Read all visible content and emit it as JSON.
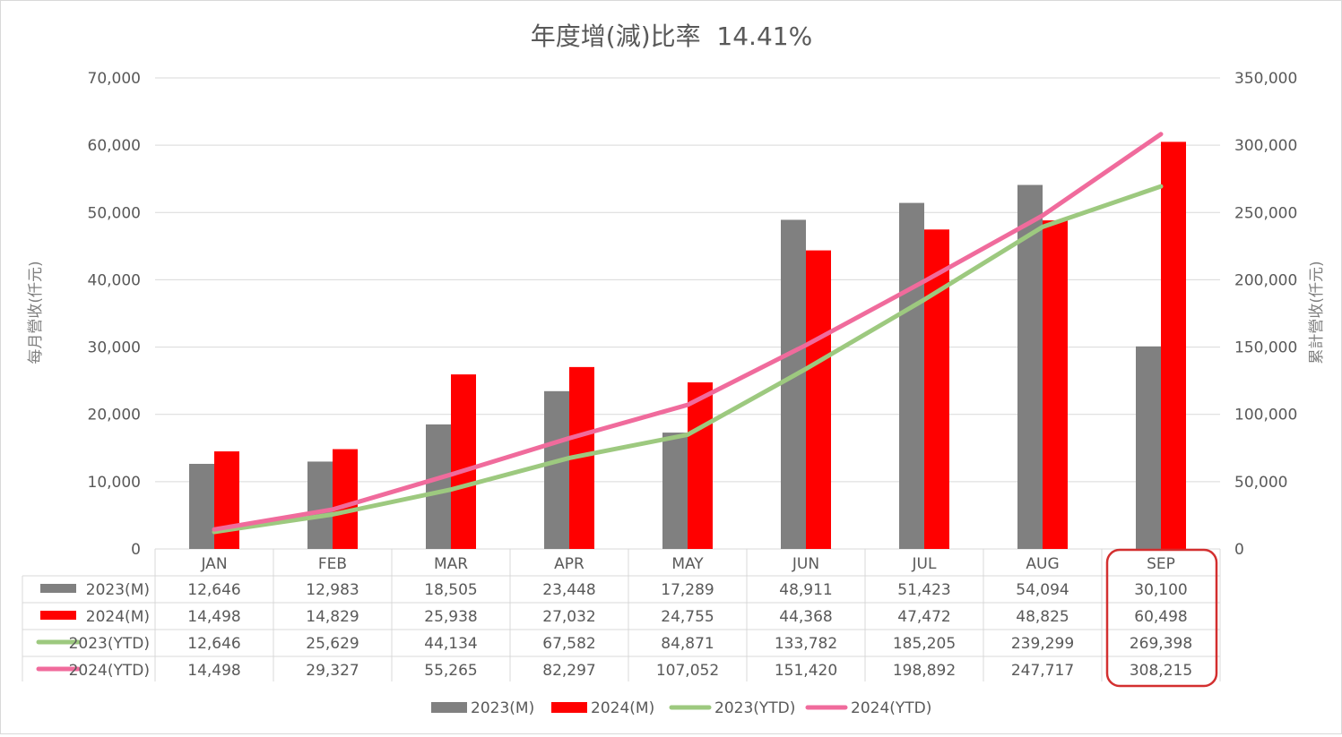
{
  "chart_data": {
    "type": "bar",
    "title": "年度增(減)比率  14.41%",
    "categories": [
      "JAN",
      "FEB",
      "MAR",
      "APR",
      "MAY",
      "JUN",
      "JUL",
      "AUG",
      "SEP"
    ],
    "ylabel_left": "每月營收(仟元)",
    "ylabel_right": "累計營收(仟元)",
    "ylim_left": [
      0,
      70000
    ],
    "ylim_right": [
      0,
      350000
    ],
    "yticks_left": [
      "0",
      "10,000",
      "20,000",
      "30,000",
      "40,000",
      "50,000",
      "60,000",
      "70,000"
    ],
    "yticks_right": [
      "0",
      "50,000",
      "100,000",
      "150,000",
      "200,000",
      "250,000",
      "300,000",
      "350,000"
    ],
    "grid": true,
    "legend_position": "bottom",
    "highlight_category": "SEP",
    "highlight_color": "#d32f2f",
    "series": [
      {
        "name": "2023(M)",
        "type": "bar",
        "axis": "left",
        "color": "#808080",
        "values": [
          12646,
          12983,
          18505,
          23448,
          17289,
          48911,
          51423,
          54094,
          30100
        ],
        "labels": [
          "12,646",
          "12,983",
          "18,505",
          "23,448",
          "17,289",
          "48,911",
          "51,423",
          "54,094",
          "30,100"
        ]
      },
      {
        "name": "2024(M)",
        "type": "bar",
        "axis": "left",
        "color": "#ff0000",
        "values": [
          14498,
          14829,
          25938,
          27032,
          24755,
          44368,
          47472,
          48825,
          60498
        ],
        "labels": [
          "14,498",
          "14,829",
          "25,938",
          "27,032",
          "24,755",
          "44,368",
          "47,472",
          "48,825",
          "60,498"
        ]
      },
      {
        "name": "2023(YTD)",
        "type": "line",
        "axis": "right",
        "color": "#9dc97f",
        "values": [
          12646,
          25629,
          44134,
          67582,
          84871,
          133782,
          185205,
          239299,
          269398
        ],
        "labels": [
          "12,646",
          "25,629",
          "44,134",
          "67,582",
          "84,871",
          "133,782",
          "185,205",
          "239,299",
          "269,398"
        ]
      },
      {
        "name": "2024(YTD)",
        "type": "line",
        "axis": "right",
        "color": "#f06b9c",
        "values": [
          14498,
          29327,
          55265,
          82297,
          107052,
          151420,
          198892,
          247717,
          308215
        ],
        "labels": [
          "14,498",
          "29,327",
          "55,265",
          "82,297",
          "107,052",
          "151,420",
          "198,892",
          "247,717",
          "308,215"
        ]
      }
    ]
  }
}
